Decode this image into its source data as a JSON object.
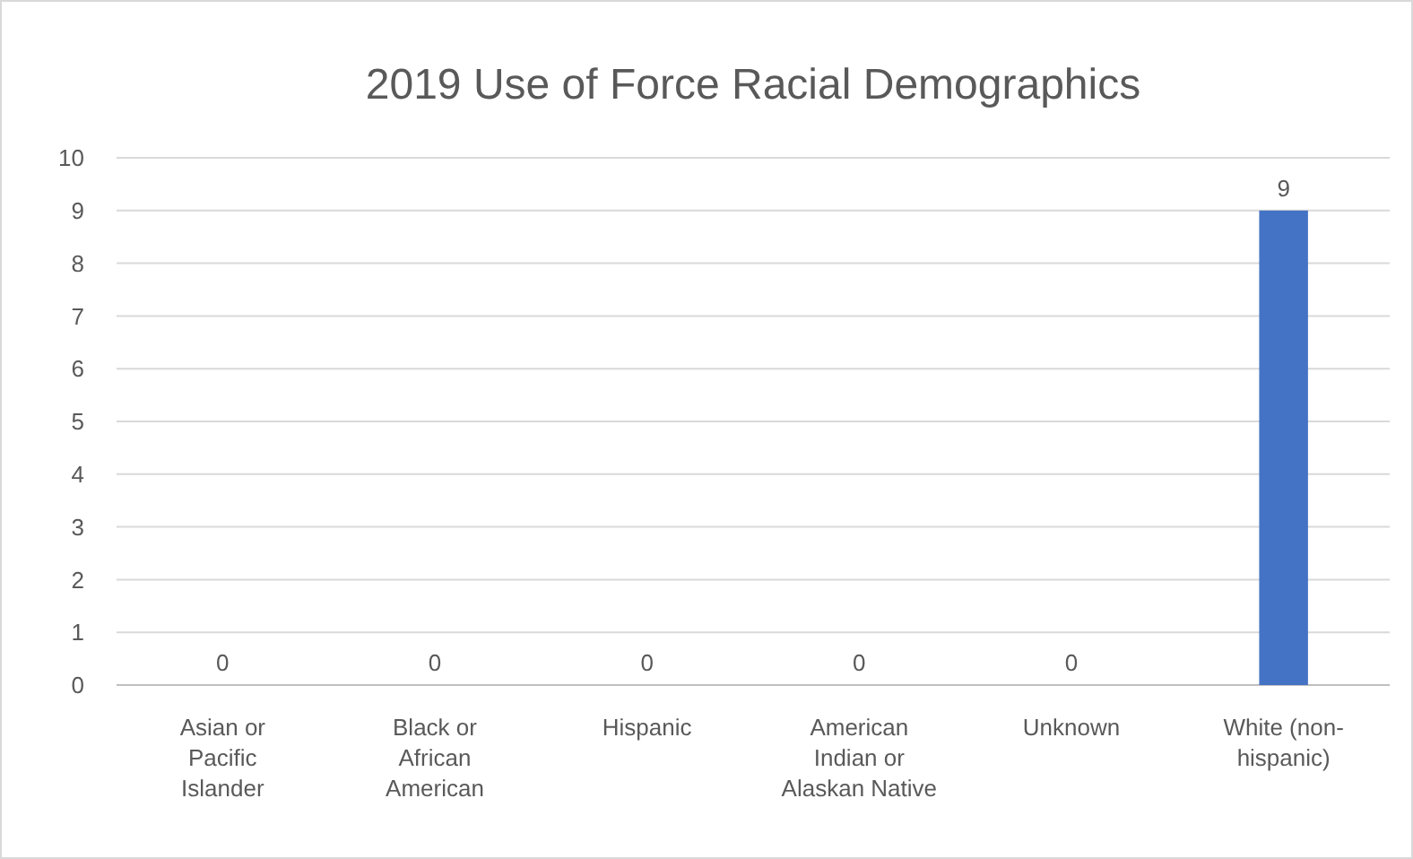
{
  "chart_data": {
    "type": "bar",
    "title": "2019 Use of Force Racial Demographics",
    "categories": [
      "Asian or Pacific Islander",
      "Black or African American",
      "Hispanic",
      "American Indian or Alaskan Native",
      "Unknown",
      "White (non-hispanic)"
    ],
    "values": [
      0,
      0,
      0,
      0,
      0,
      9
    ],
    "color": "#4472c4",
    "ylim": [
      0,
      10
    ],
    "yticks": [
      0,
      1,
      2,
      3,
      4,
      5,
      6,
      7,
      8,
      9,
      10
    ],
    "grid": "y",
    "data_labels": true
  }
}
